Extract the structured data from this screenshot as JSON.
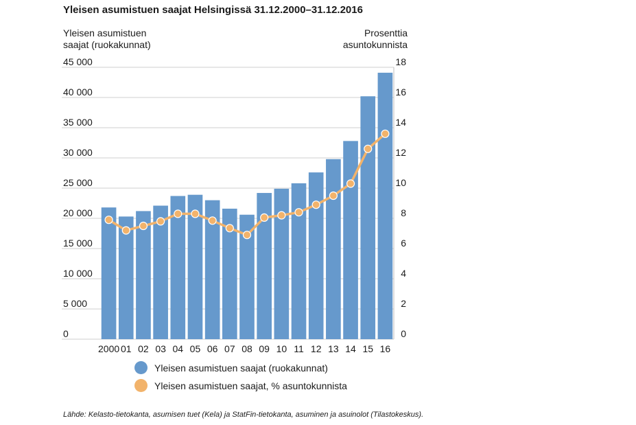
{
  "chart_data": {
    "type": "bar",
    "title": "Yleisen asumistuen saajat Helsingissä 31.12.2000–31.12.2016",
    "ylabel_left": [
      "Yleisen asumistuen",
      "saajat (ruokakunnat)"
    ],
    "ylabel_right": [
      "Prosenttia",
      "asuntokunnista"
    ],
    "categories": [
      "2000",
      "01",
      "02",
      "03",
      "04",
      "05",
      "06",
      "07",
      "08",
      "09",
      "10",
      "11",
      "12",
      "13",
      "14",
      "15",
      "16"
    ],
    "series": [
      {
        "name": "Yleisen asumistuen saajat (ruokakunnat)",
        "type": "bar",
        "axis": "left",
        "color": "#6699cc",
        "values": [
          21800,
          20300,
          21200,
          22100,
          23700,
          23900,
          23000,
          21600,
          20600,
          24200,
          24900,
          25800,
          27600,
          29800,
          32800,
          40200,
          44100
        ]
      },
      {
        "name": "Yleisen asumistuen saajat, % asuntokunnista",
        "type": "line",
        "axis": "right",
        "color": "#f2b36b",
        "values": [
          7.9,
          7.2,
          7.5,
          7.8,
          8.3,
          8.3,
          7.85,
          7.35,
          6.9,
          8.05,
          8.2,
          8.4,
          8.9,
          9.5,
          10.3,
          12.6,
          13.6
        ]
      }
    ],
    "ylim_left": [
      0,
      45000
    ],
    "ylim_right": [
      0,
      18
    ],
    "yticks_left": [
      "0",
      "5 000",
      "10 000",
      "15 000",
      "20 000",
      "25 000",
      "30 000",
      "35 000",
      "40 000",
      "45 000"
    ],
    "yticks_right": [
      "0",
      "2",
      "4",
      "6",
      "8",
      "10",
      "12",
      "14",
      "16",
      "18"
    ],
    "grid": true,
    "legend_position": "bottom"
  },
  "legend": {
    "bar_label": "Yleisen asumistuen saajat (ruokakunnat)",
    "line_label": "Yleisen asumistuen saajat, % asuntokunnista"
  },
  "source": "Lähde: Kelasto-tietokanta, asumisen tuet (Kela) ja StatFin-tietokanta, asuminen ja asuinolot (Tilastokeskus)."
}
